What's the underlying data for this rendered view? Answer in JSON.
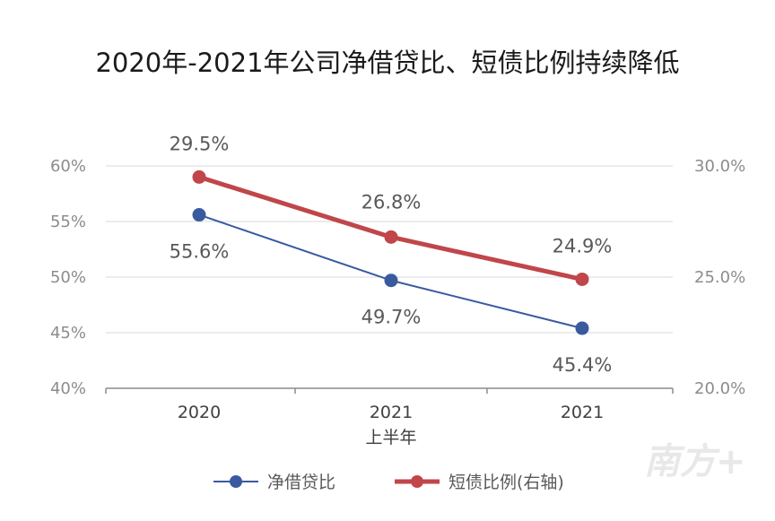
{
  "chart_data": {
    "type": "line",
    "title": "2020年-2021年公司净借贷比、短债比例持续降低",
    "categories": [
      "2020",
      "2021\n上半年",
      "2021"
    ],
    "series": [
      {
        "name": "净借贷比",
        "axis": "left",
        "color": "#3a5aa0",
        "values": [
          55.6,
          49.7,
          45.4
        ],
        "labels": [
          "55.6%",
          "49.7%",
          "45.4%"
        ]
      },
      {
        "name": "短债比例(右轴)",
        "axis": "right",
        "color": "#c0464a",
        "values": [
          29.5,
          26.8,
          24.9
        ],
        "labels": [
          "29.5%",
          "26.8%",
          "24.9%"
        ]
      }
    ],
    "y_left": {
      "lim": [
        40,
        60
      ],
      "ticks": [
        "40%",
        "45%",
        "50%",
        "55%",
        "60%"
      ]
    },
    "y_right": {
      "lim": [
        20,
        30
      ],
      "ticks": [
        "20.0%",
        "25.0%",
        "30.0%"
      ]
    },
    "grid": true,
    "legend": "bottom"
  },
  "watermark": "南方+"
}
